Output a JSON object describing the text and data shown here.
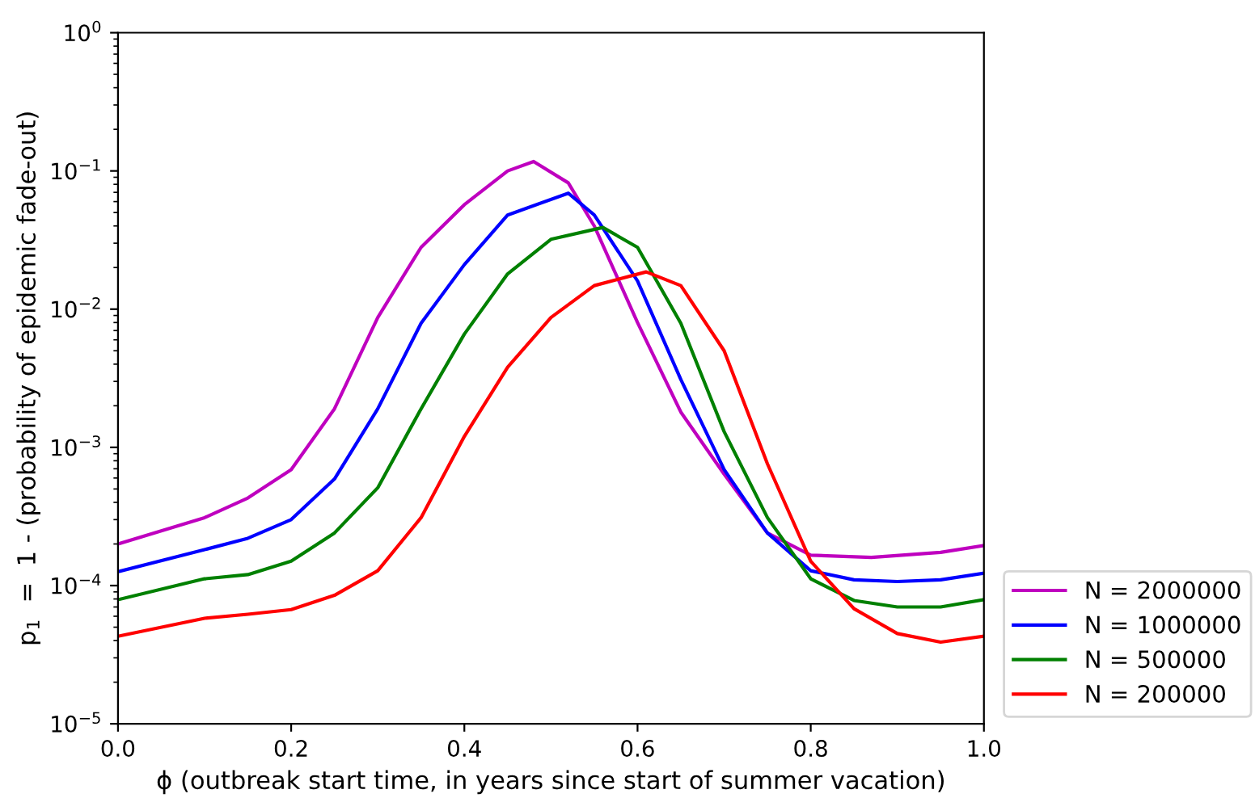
{
  "chart_data": {
    "type": "line",
    "xlabel": "ϕ (outbreak start time, in years since start of summer vacation)",
    "ylabel": "p$_{1}$  =  1 - (probability of epidemic fade-out)",
    "log": "y",
    "legend": "bottom right",
    "grid": false,
    "xlim": [
      0.0,
      1.0
    ],
    "xticks": [
      {
        "value": 0,
        "label": "0.0"
      },
      0.2,
      0.4,
      0.6,
      0.8,
      {
        "value": 1,
        "label": "1.0"
      }
    ],
    "ylim": [
      1e-05,
      1
    ],
    "yticks": [
      {
        "value": 1e-05,
        "label": "10$^{−5}$"
      },
      {
        "value": 0.0001,
        "label": "10$^{−4}$"
      },
      {
        "value": 0.001,
        "label": "10$^{−3}$"
      },
      {
        "value": 0.01,
        "label": "10$^{−2}$"
      },
      {
        "value": 0.1,
        "label": "10$^{−1}$"
      },
      {
        "value": 1,
        "label": "10$^{0}$"
      }
    ],
    "series": [
      {
        "name": "N = 2000000",
        "color": "#bf00bf",
        "x": [
          0,
          0.1,
          0.15,
          0.2,
          0.25,
          0.3,
          0.35,
          0.4,
          0.45,
          0.48,
          0.52,
          0.55,
          0.6,
          0.65,
          0.7,
          0.75,
          0.8,
          0.87,
          0.95,
          1.0
        ],
        "values": [
          0.0002,
          0.00031,
          0.00043,
          0.00069,
          0.0019,
          0.0087,
          0.028,
          0.057,
          0.1,
          0.117,
          0.082,
          0.04,
          0.008,
          0.0018,
          0.00064,
          0.00024,
          0.000166,
          0.00016,
          0.000174,
          0.000195
        ]
      },
      {
        "name": "N = 1000000",
        "color": "#0000ff",
        "x": [
          0,
          0.1,
          0.15,
          0.2,
          0.25,
          0.3,
          0.35,
          0.4,
          0.45,
          0.52,
          0.55,
          0.6,
          0.65,
          0.7,
          0.75,
          0.8,
          0.85,
          0.9,
          0.95,
          1.0
        ],
        "values": [
          0.000126,
          0.000182,
          0.00022,
          0.0003,
          0.00059,
          0.0019,
          0.0079,
          0.021,
          0.048,
          0.069,
          0.048,
          0.016,
          0.0031,
          0.00069,
          0.00024,
          0.000128,
          0.00011,
          0.000107,
          0.00011,
          0.000123
        ]
      },
      {
        "name": "N = 500000",
        "color": "#008000",
        "x": [
          0,
          0.1,
          0.15,
          0.2,
          0.25,
          0.3,
          0.35,
          0.4,
          0.45,
          0.5,
          0.56,
          0.6,
          0.65,
          0.7,
          0.75,
          0.8,
          0.85,
          0.9,
          0.95,
          1.0
        ],
        "values": [
          7.9e-05,
          0.000112,
          0.00012,
          0.00015,
          0.00024,
          0.00051,
          0.0019,
          0.0066,
          0.018,
          0.032,
          0.039,
          0.028,
          0.0079,
          0.0013,
          0.00031,
          0.000112,
          7.8e-05,
          7e-05,
          7e-05,
          7.9e-05
        ]
      },
      {
        "name": "N = 200000",
        "color": "#ff0000",
        "x": [
          0,
          0.1,
          0.15,
          0.2,
          0.25,
          0.3,
          0.35,
          0.4,
          0.45,
          0.5,
          0.55,
          0.61,
          0.65,
          0.7,
          0.75,
          0.8,
          0.85,
          0.9,
          0.95,
          1.0
        ],
        "values": [
          4.3e-05,
          5.8e-05,
          6.2e-05,
          6.7e-05,
          8.5e-05,
          0.000128,
          0.00031,
          0.0012,
          0.0038,
          0.0087,
          0.0148,
          0.0186,
          0.0148,
          0.005,
          0.00076,
          0.00015,
          6.8e-05,
          4.5e-05,
          3.9e-05,
          4.3e-05
        ]
      }
    ]
  }
}
